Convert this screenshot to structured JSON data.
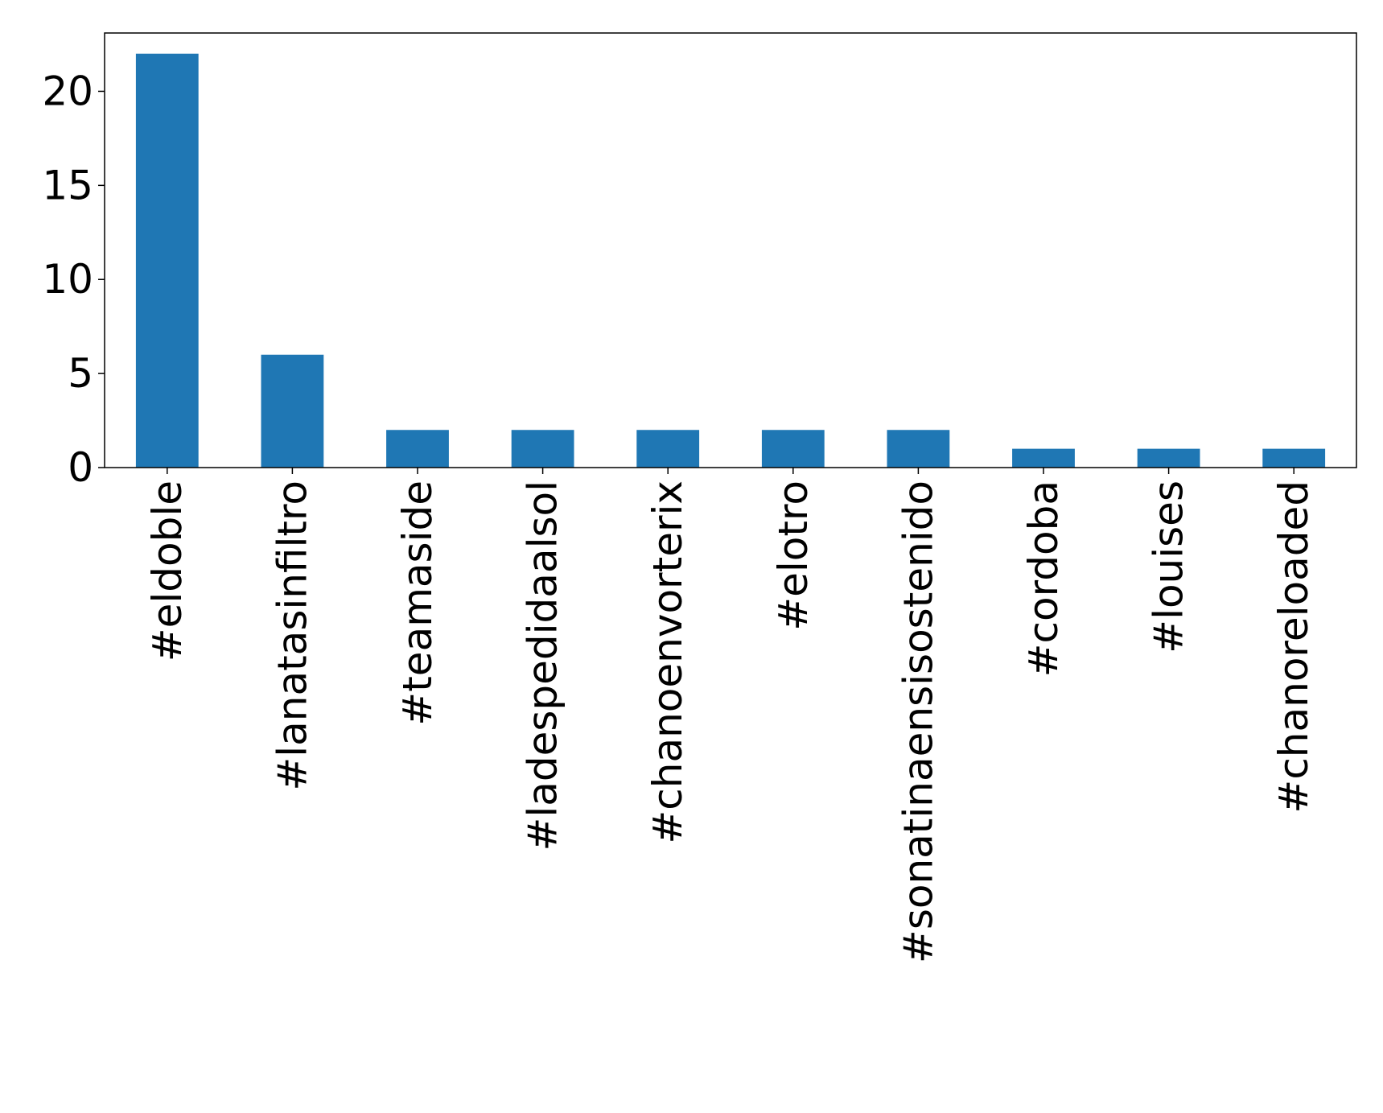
{
  "chart_data": {
    "type": "bar",
    "title": "",
    "xlabel": "",
    "ylabel": "",
    "categories": [
      "#eldoble",
      "#lanatasinfiltro",
      "#teamaside",
      "#ladespedidaalsol",
      "#chanoenvorterix",
      "#elotro",
      "#sonatinaensisostenido",
      "#cordoba",
      "#louises",
      "#chanoreloaded"
    ],
    "values": [
      22,
      6,
      2,
      2,
      2,
      2,
      2,
      1,
      1,
      1
    ],
    "ylim": [
      0,
      23.1
    ],
    "yticks": [
      0,
      5,
      10,
      15,
      20
    ],
    "grid": false,
    "legend": "none",
    "colors": {
      "bar": "#1f77b4",
      "axis": "#000000",
      "background": "#ffffff"
    }
  }
}
